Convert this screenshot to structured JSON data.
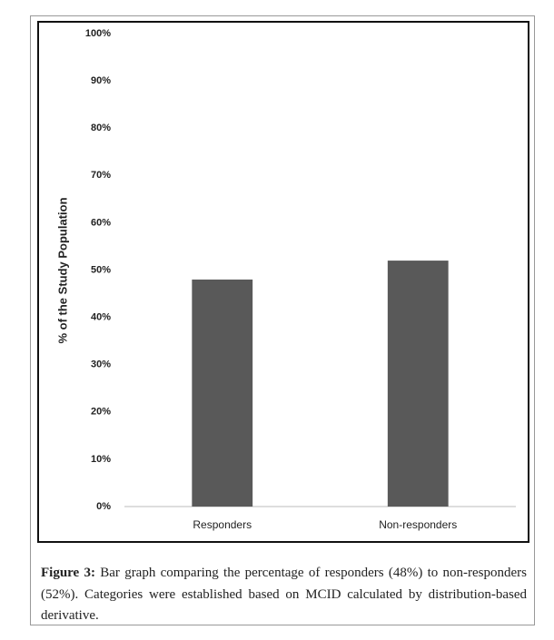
{
  "chart_data": {
    "type": "bar",
    "y_axis_label": "% of the Study Population",
    "categories": [
      "Responders",
      "Non-responders"
    ],
    "values": [
      48,
      52
    ],
    "color": "#595959",
    "ylim": [
      0,
      100
    ],
    "yticks": [
      {
        "value": 0,
        "label": "0%"
      },
      {
        "value": 10,
        "label": "10%"
      },
      {
        "value": 20,
        "label": "20%"
      },
      {
        "value": 30,
        "label": "30%"
      },
      {
        "value": 40,
        "label": "40%"
      },
      {
        "value": 50,
        "label": "50%"
      },
      {
        "value": 60,
        "label": "60%"
      },
      {
        "value": 70,
        "label": "70%"
      },
      {
        "value": 80,
        "label": "80%"
      },
      {
        "value": 90,
        "label": "90%"
      },
      {
        "value": 100,
        "label": "100%"
      }
    ],
    "grid": false
  },
  "caption": {
    "label": "Figure 3:",
    "text": "Bar graph comparing the percentage of responders (48%) to non-responders (52%). Categories were established based on MCID calculated by distribution-based derivative."
  }
}
